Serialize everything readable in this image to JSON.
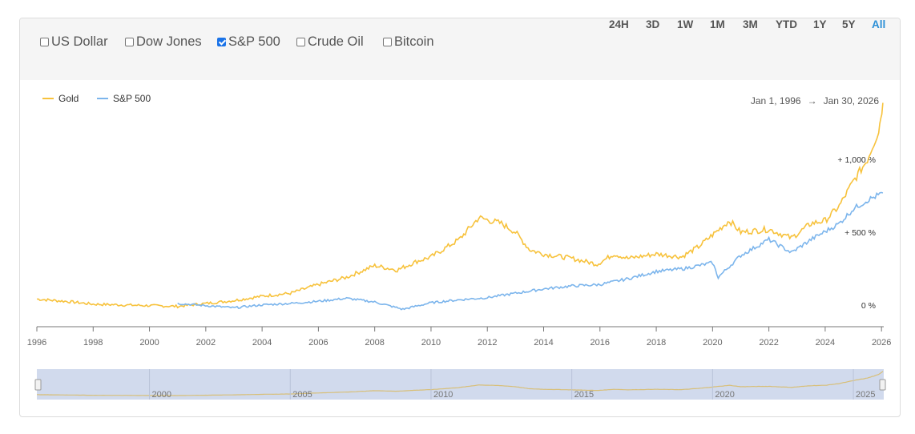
{
  "compare": [
    {
      "label": "US Dollar",
      "checked": false
    },
    {
      "label": "Dow Jones",
      "checked": false
    },
    {
      "label": "S&P 500",
      "checked": true
    },
    {
      "label": "Crude Oil",
      "checked": false
    },
    {
      "label": "Bitcoin",
      "checked": false
    }
  ],
  "ranges": [
    {
      "label": "24H",
      "active": false
    },
    {
      "label": "3D",
      "active": false
    },
    {
      "label": "1W",
      "active": false
    },
    {
      "label": "1M",
      "active": false
    },
    {
      "label": "3M",
      "active": false
    },
    {
      "label": "YTD",
      "active": false
    },
    {
      "label": "1Y",
      "active": false
    },
    {
      "label": "5Y",
      "active": false
    },
    {
      "label": "All",
      "active": true
    }
  ],
  "date_range": {
    "start": "Jan 1, 1996",
    "arrow": "→",
    "end": "Jan 30, 2026"
  },
  "colors": {
    "gold": "#f7c23c",
    "sp500": "#7cb5ec",
    "active_range": "#2b8fd6",
    "navigator_mask": "#ccd6eb"
  },
  "chart_data": {
    "type": "line",
    "x_unit": "year",
    "xlim": [
      1996,
      2026.08
    ],
    "y_unit": "percent change",
    "ylim": [
      -150,
      1420
    ],
    "y_labels": [
      {
        "value": 1000,
        "text": "+ 1,000 %"
      },
      {
        "value": 500,
        "text": "+ 500 %"
      },
      {
        "value": 0,
        "text": "0 %"
      }
    ],
    "x_ticks": [
      "1996",
      "1998",
      "2000",
      "2002",
      "2004",
      "2006",
      "2008",
      "2010",
      "2012",
      "2014",
      "2016",
      "2018",
      "2020",
      "2022",
      "2024",
      "2026"
    ],
    "x_tick_values": [
      1996,
      1998,
      2000,
      2002,
      2004,
      2006,
      2008,
      2010,
      2012,
      2014,
      2016,
      2018,
      2020,
      2022,
      2024,
      2026
    ],
    "series": [
      {
        "name": "Gold",
        "color": "#f7c23c",
        "points": [
          [
            1996,
            40
          ],
          [
            1997,
            25
          ],
          [
            1998,
            5
          ],
          [
            1999,
            0
          ],
          [
            2000,
            -5
          ],
          [
            2001,
            -10
          ],
          [
            2002,
            10
          ],
          [
            2003,
            30
          ],
          [
            2004,
            60
          ],
          [
            2005,
            80
          ],
          [
            2006,
            140
          ],
          [
            2007,
            190
          ],
          [
            2008,
            270
          ],
          [
            2008.8,
            240
          ],
          [
            2009.5,
            300
          ],
          [
            2010,
            330
          ],
          [
            2011,
            450
          ],
          [
            2011.7,
            600
          ],
          [
            2012.5,
            560
          ],
          [
            2013,
            500
          ],
          [
            2013.5,
            380
          ],
          [
            2014,
            350
          ],
          [
            2015,
            320
          ],
          [
            2015.9,
            280
          ],
          [
            2016.5,
            350
          ],
          [
            2017,
            320
          ],
          [
            2018,
            350
          ],
          [
            2018.9,
            330
          ],
          [
            2019.5,
            400
          ],
          [
            2020.6,
            580
          ],
          [
            2021,
            500
          ],
          [
            2022,
            520
          ],
          [
            2022.8,
            460
          ],
          [
            2023.5,
            560
          ],
          [
            2024,
            580
          ],
          [
            2024.5,
            680
          ],
          [
            2025,
            850
          ],
          [
            2025.5,
            1000
          ],
          [
            2025.9,
            1200
          ],
          [
            2026.05,
            1390
          ]
        ]
      },
      {
        "name": "S&P 500",
        "color": "#7cb5ec",
        "points": [
          [
            2001,
            10
          ],
          [
            2002,
            -5
          ],
          [
            2003,
            -20
          ],
          [
            2004,
            0
          ],
          [
            2005,
            10
          ],
          [
            2006,
            25
          ],
          [
            2007,
            45
          ],
          [
            2008,
            20
          ],
          [
            2009,
            -30
          ],
          [
            2010,
            15
          ],
          [
            2011,
            35
          ],
          [
            2012,
            50
          ],
          [
            2013,
            80
          ],
          [
            2014,
            110
          ],
          [
            2015,
            130
          ],
          [
            2016,
            140
          ],
          [
            2017,
            180
          ],
          [
            2018,
            230
          ],
          [
            2019,
            250
          ],
          [
            2020,
            290
          ],
          [
            2020.2,
            190
          ],
          [
            2021,
            340
          ],
          [
            2022,
            450
          ],
          [
            2022.8,
            360
          ],
          [
            2023.5,
            450
          ],
          [
            2024.5,
            560
          ],
          [
            2025,
            660
          ],
          [
            2025.5,
            720
          ],
          [
            2026.05,
            770
          ]
        ]
      }
    ],
    "navigator_labels": [
      "2000",
      "2005",
      "2010",
      "2015",
      "2020",
      "2025"
    ],
    "navigator_label_values": [
      2000,
      2005,
      2010,
      2015,
      2020,
      2025
    ]
  }
}
